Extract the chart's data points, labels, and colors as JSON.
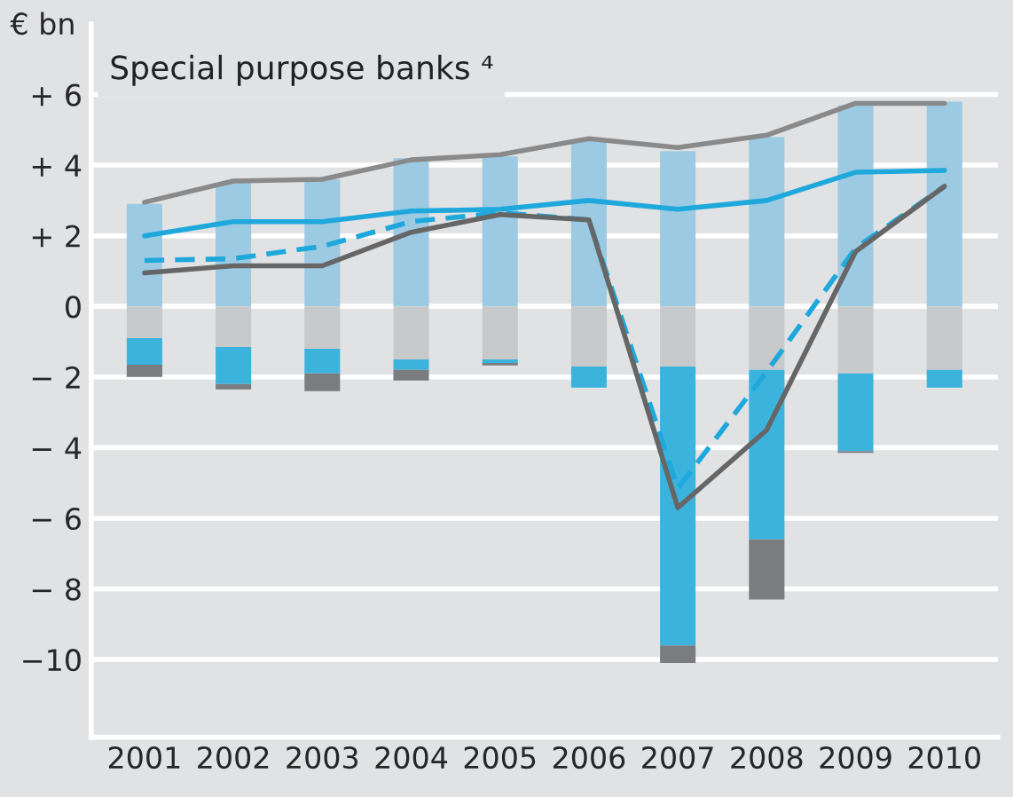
{
  "chart_data": {
    "type": "bar",
    "title": "Special purpose banks ⁴",
    "ylabel": "€ bn",
    "categories": [
      "2001",
      "2002",
      "2003",
      "2004",
      "2005",
      "2006",
      "2007",
      "2008",
      "2009",
      "2010"
    ],
    "stacked": true,
    "series": [
      {
        "color": "#9ccae3",
        "values": [
          2.9,
          3.5,
          3.6,
          4.2,
          4.25,
          4.7,
          4.4,
          4.8,
          5.7,
          5.8
        ]
      },
      {
        "color": "#c8c9cb",
        "values": [
          -0.9,
          -1.15,
          -1.2,
          -1.5,
          -1.5,
          -1.7,
          -1.7,
          -1.8,
          -1.9,
          -1.8
        ]
      },
      {
        "color": "#3bb3dd",
        "values": [
          -0.75,
          -1.05,
          -0.7,
          -0.3,
          -0.1,
          -0.6,
          -7.9,
          -4.8,
          -2.2,
          -0.5
        ]
      },
      {
        "color": "#7b7c80",
        "values": [
          -0.35,
          -0.15,
          -0.5,
          -0.3,
          -0.07,
          0,
          -0.5,
          -1.7,
          -0.05,
          0
        ]
      },
      {
        "type": "line",
        "color": "#8a8a8a",
        "values": [
          2.95,
          3.55,
          3.6,
          4.15,
          4.3,
          4.75,
          4.5,
          4.85,
          5.75,
          5.75
        ]
      },
      {
        "type": "line",
        "color": "#1fa8dc",
        "values": [
          2.0,
          2.4,
          2.4,
          2.7,
          2.75,
          3.0,
          2.75,
          3.0,
          3.8,
          3.85
        ]
      },
      {
        "type": "line",
        "color": "#1fa8dc",
        "line_style": "dashed",
        "values": [
          1.3,
          1.35,
          1.7,
          2.4,
          2.65,
          2.45,
          -5.15,
          -1.85,
          1.65,
          3.4
        ]
      },
      {
        "type": "line",
        "color": "#666666",
        "values": [
          0.95,
          1.15,
          1.15,
          2.1,
          2.6,
          2.45,
          -5.7,
          -3.5,
          1.55,
          3.4
        ]
      }
    ],
    "ylim": [
      -12.2,
      8
    ],
    "yticks": [
      {
        "value": 6,
        "label": "+ 6"
      },
      {
        "value": 4,
        "label": "+ 4"
      },
      {
        "value": 2,
        "label": "+ 2"
      },
      0,
      {
        "value": -2,
        "label": "− 2"
      },
      {
        "value": -4,
        "label": "− 4"
      },
      {
        "value": -6,
        "label": "− 6"
      },
      {
        "value": -8,
        "label": "− 8"
      },
      {
        "value": -10,
        "label": "−10"
      }
    ],
    "grid": "y",
    "legend": false
  }
}
